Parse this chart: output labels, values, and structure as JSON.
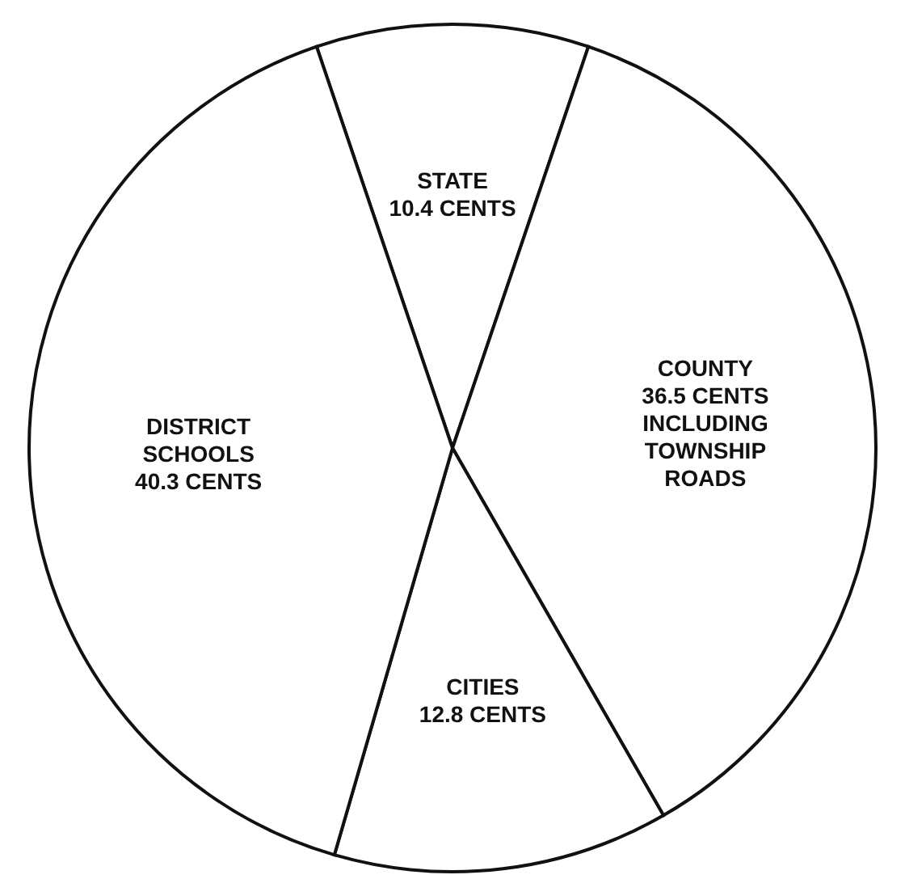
{
  "chart_data": {
    "type": "pie",
    "categories": [
      "STATE",
      "COUNTY",
      "CITIES",
      "DISTRICT SCHOOLS"
    ],
    "values": [
      10.4,
      36.5,
      12.8,
      40.3
    ],
    "value_labels": [
      "10.4 CENTS",
      "36.5 CENTS INCLUDING TOWNSHIP ROADS",
      "12.8 CENTS",
      "40.3 CENTS"
    ],
    "colors": [
      "#ffffff",
      "#ffffff",
      "#ffffff",
      "#ffffff"
    ],
    "legend": false
  }
}
